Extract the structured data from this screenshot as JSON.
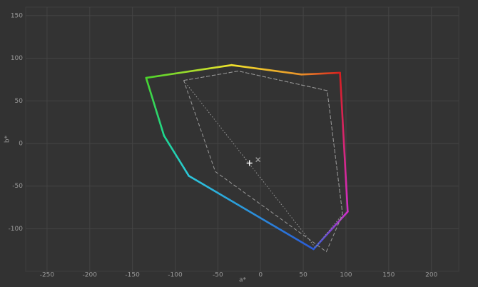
{
  "chart_data": {
    "type": "gamut",
    "x_label": "a*",
    "y_label": "b*",
    "xlim": [
      -275,
      232
    ],
    "ylim": [
      -150,
      160
    ],
    "xticks": [
      -250,
      -200,
      -150,
      -100,
      -50,
      0,
      50,
      100,
      150,
      200
    ],
    "yticks": [
      -100,
      -50,
      0,
      50,
      100,
      150
    ],
    "grid": true,
    "series": [
      {
        "x": [
          -134,
          -34,
          48,
          93,
          102,
          62,
          -84,
          -113,
          -134
        ],
        "y": [
          77,
          92,
          81,
          83,
          -80,
          -124,
          -38,
          9,
          77
        ],
        "colors": [
          "#4ad42c",
          "#f2e42c",
          "#e8902a",
          "#d81e1e",
          "#d22ec8",
          "#2a5ad8",
          "#2cc8dc",
          "#1cd890",
          "#4ad42c"
        ],
        "style": "solid"
      },
      {
        "x": [
          -90,
          -26,
          78,
          96,
          77,
          -53,
          -90
        ],
        "y": [
          74,
          85,
          62,
          -83,
          -127,
          -33,
          74
        ],
        "color": "#9a9a9a",
        "style": "dashed"
      },
      {
        "x": [
          -90,
          -26,
          78,
          96,
          64,
          -90
        ],
        "y": [
          74,
          85,
          62,
          -83,
          -122,
          74
        ],
        "color": "#9a9a9a",
        "style": "dotted"
      }
    ],
    "markers": [
      {
        "x": -13,
        "y": -23,
        "symbol": "plus",
        "color": "#ffffff"
      },
      {
        "x": -3,
        "y": -19,
        "symbol": "cross",
        "color": "#9a9a9a"
      }
    ]
  }
}
